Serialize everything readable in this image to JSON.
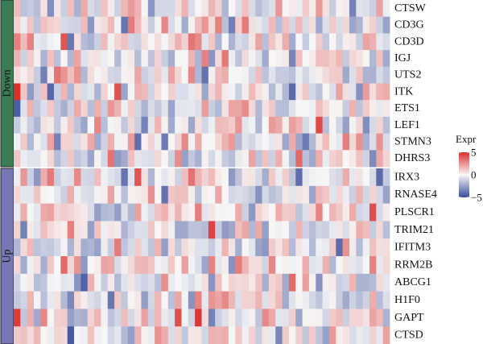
{
  "chart_data": {
    "type": "heatmap",
    "title": "",
    "row_groups": [
      {
        "name": "Down",
        "color": "#3a7d55",
        "rows": [
          "CTSW",
          "CD3G",
          "CD3D",
          "IGJ",
          "UTS2",
          "ITK",
          "ETS1",
          "LEF1",
          "STMN3",
          "DHRS3"
        ]
      },
      {
        "name": "Up",
        "color": "#7877b5",
        "rows": [
          "IRX3",
          "RNASE4",
          "PLSCR1",
          "TRIM21",
          "IFITM3",
          "RRM2B",
          "ABCG1",
          "H1F0",
          "GAPT",
          "CTSD"
        ]
      }
    ],
    "n_columns": 56,
    "color_scale": {
      "low": "#3a4d99",
      "mid": "#f7f7f7",
      "high": "#d9302e",
      "min": -5,
      "max": 5
    },
    "legend": {
      "title": "Expr",
      "ticks": [
        "5",
        "0",
        "−5"
      ],
      "tick_values": [
        5,
        0,
        -5
      ],
      "placement": "right"
    }
  }
}
